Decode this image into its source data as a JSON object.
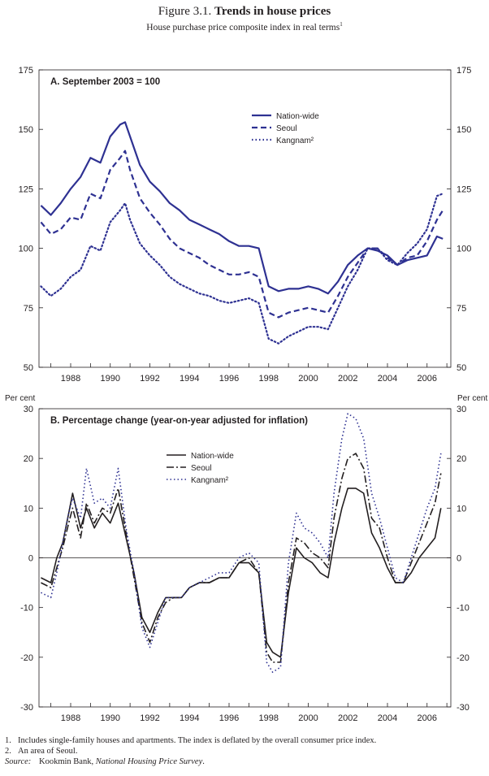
{
  "figure": {
    "number": "Figure 3.1.",
    "title": "Trends in house prices",
    "subtitle": "House purchase price composite index in real terms",
    "subtitle_note": "1"
  },
  "chart_data": [
    {
      "type": "line",
      "title": "A. September 2003 = 100",
      "ylabel": "",
      "ylim": [
        50,
        175
      ],
      "yticks": [
        50,
        75,
        100,
        125,
        150,
        175
      ],
      "xlim": [
        1986.4,
        2007.2
      ],
      "xticks": [
        1988,
        1990,
        1992,
        1994,
        1996,
        1998,
        2000,
        2002,
        2004,
        2006
      ],
      "legend_position": "top-center",
      "series": [
        {
          "name": "Nation-wide",
          "style": "solid",
          "color": "#2e3192",
          "x": [
            1986.5,
            1987,
            1987.5,
            1988,
            1988.5,
            1989,
            1989.5,
            1990,
            1990.5,
            1990.75,
            1991,
            1991.5,
            1992,
            1992.5,
            1993,
            1993.5,
            1994,
            1994.5,
            1995,
            1995.5,
            1996,
            1996.5,
            1997,
            1997.5,
            1998,
            1998.5,
            1999,
            1999.5,
            2000,
            2000.5,
            2001,
            2001.5,
            2002,
            2002.5,
            2003,
            2003.5,
            2004,
            2004.5,
            2005,
            2005.5,
            2006,
            2006.5,
            2006.8
          ],
          "y": [
            118,
            114,
            119,
            125,
            130,
            138,
            136,
            147,
            152,
            153,
            147,
            135,
            128,
            124,
            119,
            116,
            112,
            110,
            108,
            106,
            103,
            101,
            101,
            100,
            84,
            82,
            83,
            83,
            84,
            83,
            81,
            86,
            93,
            97,
            100,
            99,
            97,
            93,
            95,
            96,
            97,
            105,
            104
          ]
        },
        {
          "name": "Seoul",
          "style": "dashed",
          "color": "#2e3192",
          "x": [
            1986.5,
            1987,
            1987.5,
            1988,
            1988.5,
            1989,
            1989.5,
            1990,
            1990.5,
            1990.75,
            1991,
            1991.5,
            1992,
            1992.5,
            1993,
            1993.5,
            1994,
            1994.5,
            1995,
            1995.5,
            1996,
            1996.5,
            1997,
            1997.5,
            1998,
            1998.5,
            1999,
            1999.5,
            2000,
            2000.5,
            2001,
            2001.5,
            2002,
            2002.5,
            2003,
            2003.5,
            2004,
            2004.5,
            2005,
            2005.5,
            2006,
            2006.5,
            2006.8
          ],
          "y": [
            111,
            106,
            108,
            113,
            112,
            123,
            121,
            133,
            138,
            141,
            133,
            121,
            115,
            110,
            104,
            100,
            98,
            96,
            93,
            91,
            89,
            89,
            90,
            88,
            73,
            71,
            73,
            74,
            75,
            74,
            73,
            80,
            88,
            94,
            100,
            100,
            96,
            93,
            96,
            97,
            103,
            112,
            116
          ]
        },
        {
          "name": "Kangnam²",
          "style": "dotted",
          "color": "#2e3192",
          "x": [
            1986.5,
            1987,
            1987.5,
            1988,
            1988.5,
            1989,
            1989.5,
            1990,
            1990.5,
            1990.75,
            1991,
            1991.5,
            1992,
            1992.5,
            1993,
            1993.5,
            1994,
            1994.5,
            1995,
            1995.5,
            1996,
            1996.5,
            1997,
            1997.5,
            1998,
            1998.5,
            1999,
            1999.5,
            2000,
            2000.5,
            2001,
            2001.5,
            2002,
            2002.5,
            2003,
            2003.5,
            2004,
            2004.5,
            2005,
            2005.5,
            2006,
            2006.5,
            2006.8
          ],
          "y": [
            84,
            80,
            83,
            88,
            91,
            101,
            99,
            111,
            116,
            119,
            112,
            102,
            97,
            93,
            88,
            85,
            83,
            81,
            80,
            78,
            77,
            78,
            79,
            77,
            62,
            60,
            63,
            65,
            67,
            67,
            66,
            75,
            84,
            91,
            100,
            100,
            95,
            93,
            98,
            102,
            108,
            122,
            123
          ]
        }
      ]
    },
    {
      "type": "line",
      "title": "B. Percentage change (year-on-year  adjusted for inflation)",
      "ylabel": "Per cent",
      "ylim": [
        -30,
        30
      ],
      "yticks": [
        -30,
        -20,
        -10,
        0,
        10,
        20,
        30
      ],
      "xlim": [
        1986.4,
        2007.2
      ],
      "xticks": [
        1988,
        1990,
        1992,
        1994,
        1996,
        1998,
        2000,
        2002,
        2004,
        2006
      ],
      "legend_position": "top-center",
      "series": [
        {
          "name": "Nation-wide",
          "style": "solid",
          "color": "#231f20",
          "x": [
            1986.5,
            1987,
            1987.3,
            1987.6,
            1987.9,
            1988.1,
            1988.5,
            1988.8,
            1989.2,
            1989.6,
            1990,
            1990.4,
            1990.8,
            1991.2,
            1991.6,
            1992,
            1992.4,
            1992.8,
            1993.2,
            1993.6,
            1994,
            1994.5,
            1995,
            1995.5,
            1996,
            1996.5,
            1997,
            1997.5,
            1997.9,
            1998.2,
            1998.6,
            1999,
            1999.4,
            1999.8,
            2000.2,
            2000.6,
            2001,
            2001.3,
            2001.7,
            2002,
            2002.4,
            2002.8,
            2003.2,
            2003.6,
            2004,
            2004.4,
            2004.8,
            2005.2,
            2005.6,
            2006,
            2006.4,
            2006.7
          ],
          "y": [
            -4,
            -5,
            0,
            3,
            9,
            13,
            6,
            10,
            6,
            9,
            7,
            11,
            4,
            -3,
            -12,
            -15,
            -11,
            -8,
            -8,
            -8,
            -6,
            -5,
            -5,
            -4,
            -4,
            -1,
            -1,
            -3,
            -17,
            -19,
            -20,
            -7,
            2,
            0,
            -1,
            -3,
            -4,
            3,
            10,
            14,
            14,
            13,
            5,
            2,
            -2,
            -5,
            -5,
            -3,
            0,
            2,
            4,
            10
          ]
        },
        {
          "name": "Seoul",
          "style": "dashdot",
          "color": "#231f20",
          "x": [
            1986.5,
            1987,
            1987.3,
            1987.6,
            1987.9,
            1988.1,
            1988.5,
            1988.8,
            1989.2,
            1989.6,
            1990,
            1990.4,
            1990.8,
            1991.2,
            1991.6,
            1992,
            1992.4,
            1992.8,
            1993.2,
            1993.6,
            1994,
            1994.5,
            1995,
            1995.5,
            1996,
            1996.5,
            1997,
            1997.5,
            1997.9,
            1998.2,
            1998.6,
            1999,
            1999.4,
            1999.8,
            2000.2,
            2000.6,
            2001,
            2001.3,
            2001.7,
            2002,
            2002.4,
            2002.8,
            2003.2,
            2003.6,
            2004,
            2004.4,
            2004.8,
            2005.2,
            2005.6,
            2006,
            2006.4,
            2006.7
          ],
          "y": [
            -5,
            -6,
            -2,
            2,
            7,
            10,
            4,
            11,
            7,
            10,
            9,
            14,
            5,
            -4,
            -13,
            -17,
            -12,
            -9,
            -8,
            -8,
            -6,
            -5,
            -5,
            -4,
            -4,
            -1,
            0,
            -3,
            -19,
            -21,
            -21,
            -5,
            4,
            3,
            1,
            0,
            -2,
            8,
            16,
            20,
            21,
            18,
            8,
            6,
            0,
            -5,
            -5,
            -1,
            3,
            7,
            11,
            17
          ]
        },
        {
          "name": "Kangnam²",
          "style": "dotted",
          "color": "#2e3192",
          "x": [
            1986.5,
            1987,
            1987.3,
            1987.6,
            1987.9,
            1988.1,
            1988.5,
            1988.8,
            1989.2,
            1989.6,
            1990,
            1990.4,
            1990.8,
            1991.2,
            1991.6,
            1992,
            1992.4,
            1992.8,
            1993.2,
            1993.6,
            1994,
            1994.5,
            1995,
            1995.5,
            1996,
            1996.5,
            1997,
            1997.5,
            1997.9,
            1998.2,
            1998.6,
            1999,
            1999.4,
            1999.8,
            2000.2,
            2000.6,
            2001,
            2001.3,
            2001.7,
            2002,
            2002.4,
            2002.8,
            2003.2,
            2003.6,
            2004,
            2004.4,
            2004.8,
            2005.2,
            2005.6,
            2006,
            2006.4,
            2006.7
          ],
          "y": [
            -7,
            -8,
            -3,
            3,
            9,
            12,
            8,
            18,
            11,
            12,
            10,
            18,
            6,
            -3,
            -14,
            -18,
            -13,
            -8,
            -8,
            -8,
            -6,
            -5,
            -4,
            -3,
            -3,
            0,
            1,
            -1,
            -21,
            -23,
            -22,
            -1,
            9,
            6,
            5,
            3,
            0,
            13,
            24,
            29,
            28,
            24,
            13,
            8,
            2,
            -4,
            -5,
            0,
            5,
            10,
            14,
            21
          ]
        }
      ]
    }
  ],
  "notes": [
    {
      "num": "1.",
      "text": "Includes single-family houses and apartments. The index is deflated by the overall consumer price index."
    },
    {
      "num": "2.",
      "text": "An area of Seoul."
    }
  ],
  "source": {
    "label": "Source:",
    "text": "Kookmin Bank, ",
    "italic": "National Housing Price Survey",
    "end": "."
  }
}
